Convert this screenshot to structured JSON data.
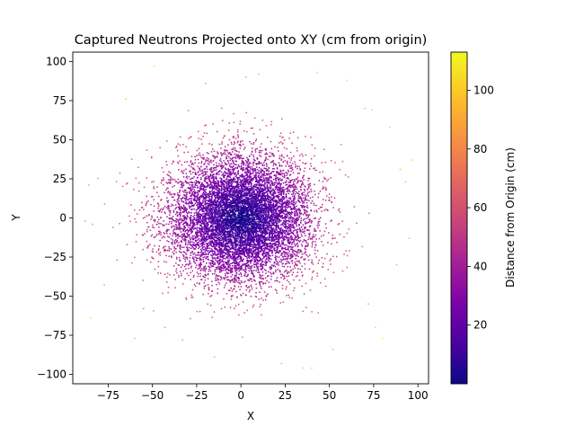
{
  "chart_data": {
    "type": "scatter",
    "title": "Captured Neutrons Projected onto XY (cm from origin)",
    "xlabel": "X",
    "ylabel": "Y",
    "xlim": [
      -95,
      106
    ],
    "ylim": [
      -106,
      106
    ],
    "xticks": [
      -75,
      -50,
      -25,
      0,
      25,
      50,
      75,
      100
    ],
    "xtick_labels": [
      "−75",
      "−50",
      "−25",
      "0",
      "25",
      "50",
      "75",
      "100"
    ],
    "yticks": [
      -100,
      -75,
      -50,
      -25,
      0,
      25,
      50,
      75,
      100
    ],
    "ytick_labels": [
      "−100",
      "−75",
      "−50",
      "−25",
      "0",
      "25",
      "50",
      "75",
      "100"
    ],
    "grid": false,
    "legend": "none",
    "colormap": "plasma",
    "colorbar": {
      "label": "Distance from Origin (cm)",
      "range": [
        0,
        113
      ],
      "ticks": [
        20,
        40,
        60,
        80,
        100
      ],
      "tick_labels": [
        "20",
        "40",
        "60",
        "80",
        "100"
      ]
    },
    "distribution": {
      "center": [
        0,
        0
      ],
      "approx_std_per_axis_cm": 20,
      "color_value": "radial distance sqrt(x^2 + y^2)"
    },
    "outlier_points": [
      {
        "x": -86,
        "y": 21
      },
      {
        "x": -85,
        "y": -64
      },
      {
        "x": -77,
        "y": 9
      },
      {
        "x": -70,
        "y": -27
      },
      {
        "x": -65,
        "y": 76
      },
      {
        "x": -55,
        "y": -58
      },
      {
        "x": -49,
        "y": 97
      },
      {
        "x": -43,
        "y": -70
      },
      {
        "x": -33,
        "y": -78
      },
      {
        "x": -20,
        "y": 86
      },
      {
        "x": -15,
        "y": -89
      },
      {
        "x": 3,
        "y": 90
      },
      {
        "x": 10,
        "y": 92
      },
      {
        "x": 23,
        "y": -93
      },
      {
        "x": 40,
        "y": -96
      },
      {
        "x": 43,
        "y": 93
      },
      {
        "x": 52,
        "y": -84
      },
      {
        "x": 60,
        "y": 88
      },
      {
        "x": 70,
        "y": 70
      },
      {
        "x": 72,
        "y": -55
      },
      {
        "x": 74,
        "y": 69
      },
      {
        "x": 76,
        "y": -70
      },
      {
        "x": 80,
        "y": -77
      },
      {
        "x": 84,
        "y": 58
      },
      {
        "x": 88,
        "y": -30
      },
      {
        "x": 90,
        "y": 31
      },
      {
        "x": 93,
        "y": 23
      },
      {
        "x": 95,
        "y": -13
      },
      {
        "x": 97,
        "y": 37
      },
      {
        "x": -88,
        "y": -2
      },
      {
        "x": -60,
        "y": -77
      },
      {
        "x": 35,
        "y": -96
      }
    ]
  }
}
